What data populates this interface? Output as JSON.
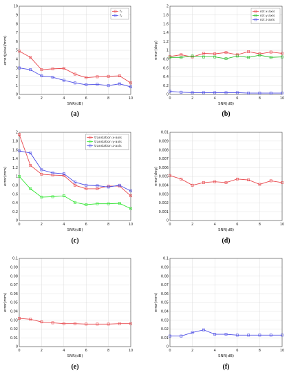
{
  "chart_data": [
    {
      "type": "line",
      "caption": "(a)",
      "xlabel": "SNR(dB)",
      "ylabel": "error(pixel/mm)",
      "xlim": [
        0,
        10
      ],
      "ylim": [
        0,
        10
      ],
      "grid": true,
      "xticks": [
        "0",
        "2",
        "4",
        "6",
        "8",
        "10"
      ],
      "yticks": [
        "0",
        "1",
        "2",
        "3",
        "4",
        "5",
        "6",
        "7",
        "8",
        "9",
        "10"
      ],
      "legend": "top-right",
      "series": [
        {
          "name": "fₓ",
          "color": "#e8474c",
          "x": [
            0,
            1,
            2,
            3,
            4,
            5,
            6,
            7,
            8,
            9,
            10
          ],
          "values": [
            4.9,
            4.2,
            2.8,
            2.9,
            2.95,
            2.3,
            1.9,
            2.0,
            2.05,
            2.1,
            1.3
          ]
        },
        {
          "name": "fᵧ",
          "color": "#4d4ee6",
          "x": [
            0,
            1,
            2,
            3,
            4,
            5,
            6,
            7,
            8,
            9,
            10
          ],
          "values": [
            3.0,
            2.8,
            2.1,
            1.95,
            1.6,
            1.3,
            1.1,
            1.15,
            1.0,
            1.2,
            0.85
          ]
        }
      ]
    },
    {
      "type": "line",
      "caption": "(b)",
      "xlabel": "SNR(dB)",
      "ylabel": "error(deg)",
      "xlim": [
        0,
        10
      ],
      "ylim": [
        0,
        2
      ],
      "grid": true,
      "xticks": [
        "0",
        "2",
        "4",
        "6",
        "8",
        "10"
      ],
      "yticks": [
        "0",
        "0.2",
        "0.4",
        "0.6",
        "0.8",
        "1",
        "1.2",
        "1.4",
        "1.6",
        "1.8",
        "2"
      ],
      "legend": "top-right",
      "series": [
        {
          "name": "rot x-axis",
          "color": "#e8474c",
          "x": [
            0,
            1,
            2,
            3,
            4,
            5,
            6,
            7,
            8,
            9,
            10
          ],
          "values": [
            0.86,
            0.9,
            0.85,
            0.93,
            0.92,
            0.95,
            0.9,
            0.97,
            0.92,
            0.96,
            0.93
          ]
        },
        {
          "name": "rot y-axis",
          "color": "#2fc02f",
          "x": [
            0,
            1,
            2,
            3,
            4,
            5,
            6,
            7,
            8,
            9,
            10
          ],
          "values": [
            0.84,
            0.84,
            0.87,
            0.85,
            0.85,
            0.81,
            0.87,
            0.84,
            0.89,
            0.84,
            0.85
          ]
        },
        {
          "name": "rot z-axis",
          "color": "#4d4ee6",
          "x": [
            0,
            1,
            2,
            3,
            4,
            5,
            6,
            7,
            8,
            9,
            10
          ],
          "values": [
            0.07,
            0.05,
            0.04,
            0.04,
            0.04,
            0.04,
            0.04,
            0.03,
            0.03,
            0.03,
            0.03
          ]
        }
      ]
    },
    {
      "type": "line",
      "caption": "(c)",
      "xlabel": "SNR(dB)",
      "ylabel": "error(mm)",
      "xlim": [
        0,
        10
      ],
      "ylim": [
        0,
        2
      ],
      "grid": true,
      "xticks": [
        "0",
        "2",
        "4",
        "6",
        "8",
        "10"
      ],
      "yticks": [
        "0",
        "0.2",
        "0.4",
        "0.6",
        "0.8",
        "1",
        "1.2",
        "1.4",
        "1.6",
        "1.8",
        "2"
      ],
      "legend": "top-right",
      "series": [
        {
          "name": "translation x-axis",
          "color": "#e8474c",
          "x": [
            0,
            1,
            2,
            3,
            4,
            5,
            6,
            7,
            8,
            9,
            10
          ],
          "values": [
            1.95,
            1.25,
            1.05,
            1.03,
            1.02,
            0.8,
            0.72,
            0.72,
            0.78,
            0.78,
            0.56
          ]
        },
        {
          "name": "translation y-axis",
          "color": "#2fe62f",
          "x": [
            0,
            1,
            2,
            3,
            4,
            5,
            6,
            7,
            8,
            9,
            10
          ],
          "values": [
            1.0,
            0.72,
            0.53,
            0.54,
            0.56,
            0.41,
            0.36,
            0.38,
            0.38,
            0.39,
            0.27
          ]
        },
        {
          "name": "translation z-axis",
          "color": "#4d4ee6",
          "x": [
            0,
            1,
            2,
            3,
            4,
            5,
            6,
            7,
            8,
            9,
            10
          ],
          "values": [
            1.58,
            1.53,
            1.15,
            1.08,
            1.06,
            0.87,
            0.8,
            0.79,
            0.76,
            0.8,
            0.67
          ]
        }
      ]
    },
    {
      "type": "line",
      "caption": "(d)",
      "xlabel": "SNR(dB)",
      "ylabel": "error(deg)",
      "xlim": [
        0,
        10
      ],
      "ylim": [
        0,
        0.01
      ],
      "grid": true,
      "xticks": [
        "0",
        "2",
        "4",
        "6",
        "8",
        "10"
      ],
      "yticks": [
        "0",
        "0.001",
        "0.002",
        "0.003",
        "0.004",
        "0.005",
        "0.006",
        "0.007",
        "0.008",
        "0.009",
        "0.01"
      ],
      "series": [
        {
          "color": "#e8474c",
          "x": [
            0,
            1,
            2,
            3,
            4,
            5,
            6,
            7,
            8,
            9,
            10
          ],
          "values": [
            0.0051,
            0.0047,
            0.004,
            0.0043,
            0.0044,
            0.0043,
            0.0047,
            0.0046,
            0.0041,
            0.0045,
            0.0043
          ]
        }
      ]
    },
    {
      "type": "line",
      "caption": "(e)",
      "xlabel": "SNR(dB)",
      "ylabel": "error(mm)",
      "xlim": [
        0,
        10
      ],
      "ylim": [
        0,
        0.1
      ],
      "grid": true,
      "xticks": [
        "0",
        "2",
        "4",
        "6",
        "8",
        "10"
      ],
      "yticks": [
        "0",
        "0.01",
        "0.02",
        "0.03",
        "0.04",
        "0.05",
        "0.06",
        "0.07",
        "0.08",
        "0.09",
        "0.1"
      ],
      "series": [
        {
          "color": "#e8474c",
          "x": [
            0,
            1,
            2,
            3,
            4,
            5,
            6,
            7,
            8,
            9,
            10
          ],
          "values": [
            0.032,
            0.031,
            0.028,
            0.027,
            0.026,
            0.026,
            0.0255,
            0.0255,
            0.0255,
            0.026,
            0.026
          ]
        }
      ]
    },
    {
      "type": "line",
      "caption": "(f)",
      "xlabel": "SNR(dB)",
      "ylabel": "error(mm)",
      "xlim": [
        0,
        10
      ],
      "ylim": [
        0,
        0.1
      ],
      "grid": true,
      "xticks": [
        "0",
        "2",
        "4",
        "6",
        "8",
        "10"
      ],
      "yticks": [
        "0",
        "0.01",
        "0.02",
        "0.03",
        "0.04",
        "0.05",
        "0.06",
        "0.07",
        "0.08",
        "0.09",
        "0.1"
      ],
      "series": [
        {
          "color": "#4d4ee6",
          "x": [
            0,
            1,
            2,
            3,
            4,
            5,
            6,
            7,
            8,
            9,
            10
          ],
          "values": [
            0.012,
            0.012,
            0.016,
            0.019,
            0.014,
            0.014,
            0.013,
            0.013,
            0.013,
            0.013,
            0.013
          ]
        }
      ]
    }
  ]
}
